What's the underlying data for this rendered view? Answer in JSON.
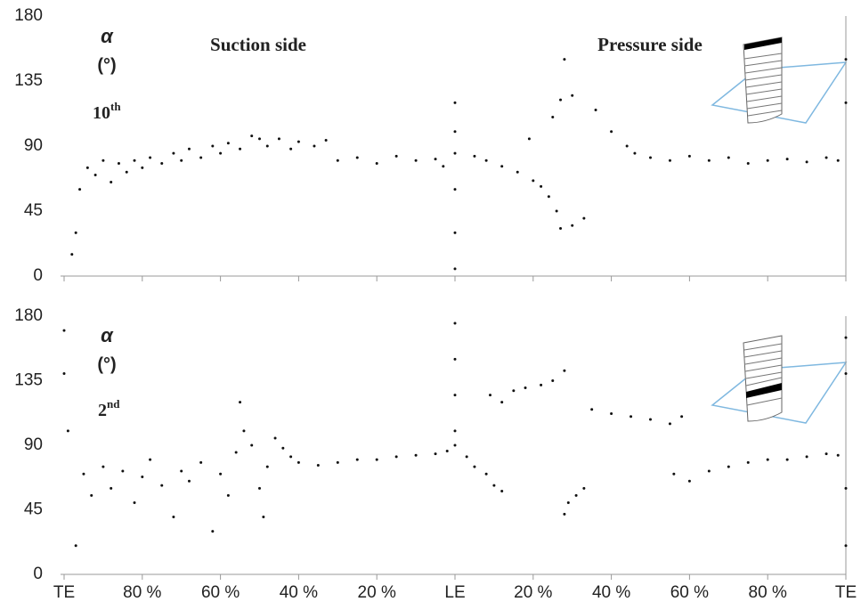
{
  "chart_data": [
    {
      "type": "scatter",
      "symbol": "α",
      "unit": "(°)",
      "span_number": "10",
      "span_suffix": "th",
      "annotations": [
        "Suction side",
        "Pressure side"
      ],
      "color": "#111",
      "ylim": [
        0,
        180
      ],
      "yticks": [
        0,
        45,
        90,
        135,
        180
      ],
      "xlim": [
        -100,
        100
      ],
      "x": [
        -98,
        -97,
        -96,
        -94,
        -92,
        -90,
        -88,
        -86,
        -84,
        -82,
        -80,
        -78,
        -75,
        -72,
        -70,
        -68,
        -65,
        -62,
        -60,
        -58,
        -55,
        -52,
        -50,
        -48,
        -45,
        -42,
        -40,
        -36,
        -33,
        -30,
        -25,
        -20,
        -15,
        -10,
        -5,
        -3,
        0,
        0,
        0,
        0,
        0,
        0,
        5,
        8,
        12,
        16,
        20,
        22,
        24,
        26,
        27,
        30,
        33,
        19,
        25,
        27,
        30,
        28,
        36,
        40,
        44,
        46,
        50,
        55,
        60,
        65,
        70,
        75,
        80,
        85,
        90,
        95,
        98,
        100,
        100
      ],
      "values": [
        15,
        30,
        60,
        75,
        70,
        80,
        65,
        78,
        72,
        80,
        75,
        82,
        78,
        85,
        80,
        88,
        82,
        90,
        85,
        92,
        88,
        97,
        95,
        90,
        95,
        88,
        93,
        90,
        94,
        80,
        82,
        78,
        83,
        80,
        81,
        76,
        5,
        30,
        60,
        85,
        100,
        120,
        83,
        80,
        76,
        72,
        66,
        62,
        55,
        45,
        33,
        35,
        40,
        95,
        110,
        122,
        125,
        150,
        115,
        100,
        90,
        85,
        82,
        80,
        83,
        80,
        82,
        78,
        80,
        81,
        79,
        82,
        80,
        150,
        120
      ]
    },
    {
      "type": "scatter",
      "symbol": "α",
      "unit": "(°)",
      "span_number": "2",
      "span_suffix": "nd",
      "color": "#111",
      "ylim": [
        0,
        180
      ],
      "yticks": [
        0,
        45,
        90,
        135,
        180
      ],
      "xlim": [
        -100,
        100
      ],
      "xticks": [
        {
          "value": -100,
          "label": "TE"
        },
        {
          "value": -80,
          "label": "80 %"
        },
        {
          "value": -60,
          "label": "60 %"
        },
        {
          "value": -40,
          "label": "40 %"
        },
        {
          "value": -20,
          "label": "20 %"
        },
        {
          "value": 0,
          "label": "LE"
        },
        {
          "value": 20,
          "label": "20 %"
        },
        {
          "value": 40,
          "label": "40 %"
        },
        {
          "value": 60,
          "label": "60 %"
        },
        {
          "value": 80,
          "label": "80 %"
        },
        {
          "value": 100,
          "label": "TE"
        }
      ],
      "x": [
        -100,
        -100,
        -99,
        -97,
        -95,
        -93,
        -90,
        -88,
        -85,
        -82,
        -80,
        -78,
        -75,
        -72,
        -70,
        -68,
        -65,
        -62,
        -60,
        -58,
        -56,
        -55,
        -54,
        -52,
        -50,
        -49,
        -48,
        -46,
        -44,
        -42,
        -40,
        -35,
        -30,
        -25,
        -20,
        -15,
        -10,
        -5,
        -2,
        0,
        0,
        0,
        0,
        0,
        3,
        5,
        8,
        10,
        12,
        9,
        12,
        15,
        18,
        22,
        25,
        28,
        28,
        29,
        31,
        33,
        35,
        40,
        45,
        50,
        55,
        58,
        56,
        60,
        65,
        70,
        75,
        80,
        85,
        90,
        95,
        98,
        100,
        100,
        100,
        100
      ],
      "values": [
        170,
        140,
        100,
        20,
        70,
        55,
        75,
        60,
        72,
        50,
        68,
        80,
        62,
        40,
        72,
        65,
        78,
        30,
        70,
        55,
        85,
        120,
        100,
        90,
        60,
        40,
        75,
        95,
        88,
        82,
        78,
        76,
        78,
        80,
        80,
        82,
        83,
        84,
        86,
        100,
        125,
        150,
        175,
        90,
        82,
        75,
        70,
        62,
        58,
        125,
        120,
        128,
        130,
        132,
        135,
        142,
        42,
        50,
        55,
        60,
        115,
        112,
        110,
        108,
        105,
        110,
        70,
        65,
        72,
        75,
        78,
        80,
        80,
        82,
        84,
        83,
        165,
        140,
        60,
        20
      ]
    }
  ]
}
